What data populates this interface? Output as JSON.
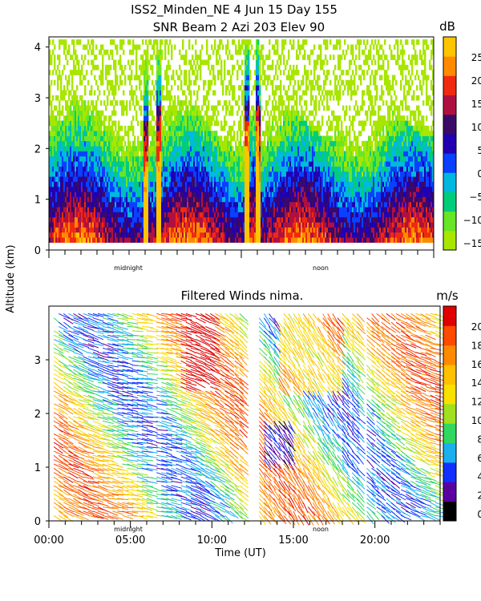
{
  "titles": {
    "line1": "ISS2_Minden_NE    4 Jun 15 Day 155",
    "line2": "SNR Beam 2 Azi 203 Elev 90"
  },
  "ylabel": "Altitude (km)",
  "xlabel": "Time (UT)",
  "markers": {
    "midnight": "midnight",
    "noon": "noon"
  },
  "colors": {
    "snr_scale": [
      "#a8e600",
      "#66e626",
      "#00cc7a",
      "#00b8e0",
      "#0a40ff",
      "#2000b0",
      "#3a0a66",
      "#b01040",
      "#f02a10",
      "#ff8a00",
      "#ffc400"
    ],
    "wind_scale": [
      "#000000",
      "#5a00a0",
      "#1030ff",
      "#1ab0f0",
      "#30d860",
      "#a0e020",
      "#f8e000",
      "#ffc000",
      "#ff8a00",
      "#ff4a00",
      "#e00000"
    ]
  },
  "chart_data": [
    {
      "type": "heatmap",
      "title": "SNR Beam 2 Azi 203 Elev 90",
      "xlabel": "",
      "ylabel": "Altitude (km)",
      "xlim": [
        0,
        24
      ],
      "ylim": [
        0,
        4.2
      ],
      "yticks": [
        "0",
        "1",
        "2",
        "3",
        "4"
      ],
      "colorbar": {
        "unit": "dB",
        "range": [
          -15,
          30
        ],
        "ticks": [
          "25",
          "20",
          "15",
          "10",
          "5",
          "0",
          "−5",
          "−10",
          "−15"
        ]
      },
      "features": {
        "data_gap_hours": [
          [
            6.3,
            7.1
          ],
          [
            12.7,
            13.0
          ]
        ],
        "strong_echo_columns_hours": [
          6.0,
          6.8,
          12.3,
          13.0
        ],
        "cloud_top_km": 2.6
      }
    },
    {
      "type": "heatmap",
      "title": "Filtered Winds nima.",
      "xlabel": "Time (UT)",
      "ylabel": "Altitude (km)",
      "xlim": [
        0,
        24
      ],
      "ylim": [
        0,
        4
      ],
      "xticks": [
        "00:00",
        "05:00",
        "10:00",
        "15:00",
        "20:00"
      ],
      "yticks": [
        "0",
        "1",
        "2",
        "3"
      ],
      "colorbar": {
        "unit": "m/s",
        "range": [
          0,
          22
        ],
        "ticks": [
          "20",
          "18",
          "16",
          "14",
          "12",
          "10",
          "8",
          "6",
          "4",
          "2",
          "0"
        ]
      },
      "features": {
        "data_gap_hours": [
          [
            6.0,
            6.5
          ],
          [
            12.0,
            12.7
          ],
          [
            19.0,
            19.4
          ]
        ],
        "max_speed_region": "8-10 UT and 14-18 UT above 2.5 km",
        "min_speed_region": "around 13-15 UT near 1.5 km"
      }
    }
  ]
}
